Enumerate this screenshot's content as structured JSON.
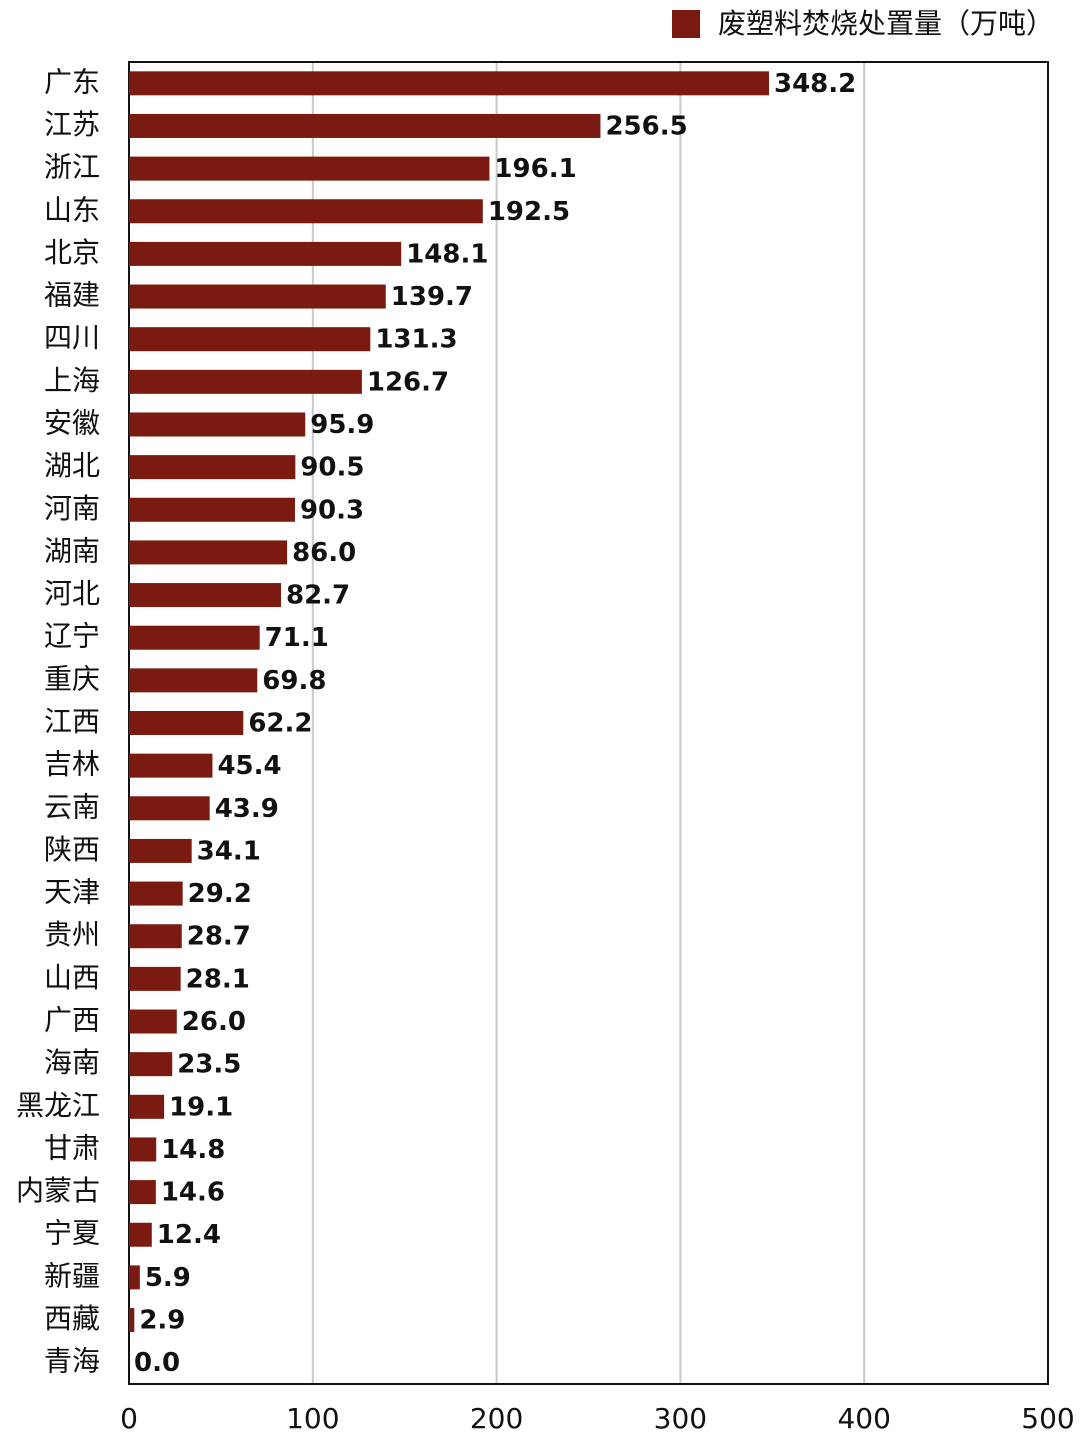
{
  "chart_data": {
    "type": "barh",
    "legend_label": "废塑料焚烧处置量（万吨）",
    "categories": [
      "广东",
      "江苏",
      "浙江",
      "山东",
      "北京",
      "福建",
      "四川",
      "上海",
      "安徽",
      "湖北",
      "河南",
      "湖南",
      "河北",
      "辽宁",
      "重庆",
      "江西",
      "吉林",
      "云南",
      "陕西",
      "天津",
      "贵州",
      "山西",
      "广西",
      "海南",
      "黑龙江",
      "甘肃",
      "内蒙古",
      "宁夏",
      "新疆",
      "西藏",
      "青海"
    ],
    "values": [
      348.2,
      256.5,
      196.1,
      192.5,
      148.1,
      139.7,
      131.3,
      126.7,
      95.9,
      90.5,
      90.3,
      86.0,
      82.7,
      71.1,
      69.8,
      62.2,
      45.4,
      43.9,
      34.1,
      29.2,
      28.7,
      28.1,
      26.0,
      23.5,
      19.1,
      14.8,
      14.6,
      12.4,
      5.9,
      2.9,
      0.0
    ],
    "value_labels": [
      "348.2",
      "256.5",
      "196.1",
      "192.5",
      "148.1",
      "139.7",
      "131.3",
      "126.7",
      "95.9",
      "90.5",
      "90.3",
      "86.0",
      "82.7",
      "71.1",
      "69.8",
      "62.2",
      "45.4",
      "43.9",
      "34.1",
      "29.2",
      "28.7",
      "28.1",
      "26.0",
      "23.5",
      "19.1",
      "14.8",
      "14.6",
      "12.4",
      "5.9",
      "2.9",
      "0.0"
    ],
    "color": "#7a1a10",
    "xlim": [
      0,
      500
    ],
    "xticks": [
      0,
      100,
      200,
      300,
      400,
      500
    ],
    "grid": true
  }
}
